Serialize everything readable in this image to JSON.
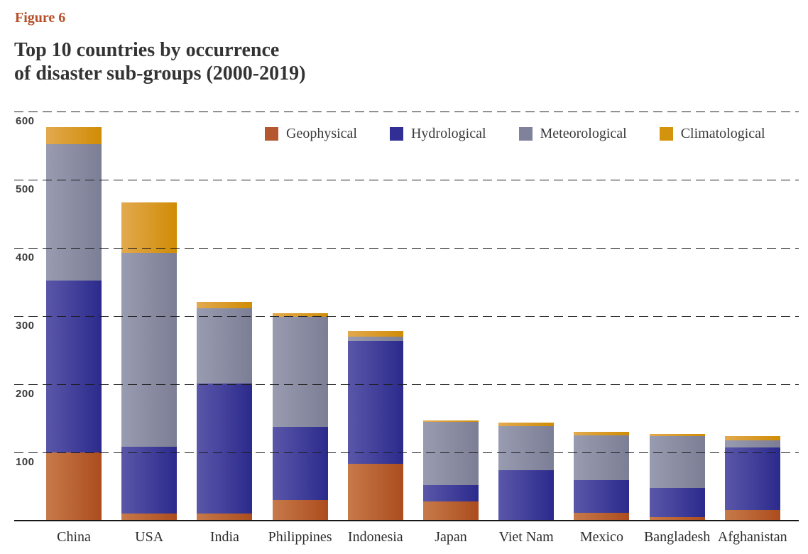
{
  "figure_label": "Figure 6",
  "title": "Top 10 countries by occurrence\nof disaster sub-groups (2000-2019)",
  "colors": {
    "figure_label": "#b5502a",
    "title_text": "#333333",
    "axis_text": "#3b3b3b",
    "gridline": "#1c1c1c",
    "background": "#ffffff"
  },
  "chart_data": {
    "type": "bar",
    "stacked": true,
    "title": "Top 10 countries by occurrence of disaster sub-groups (2000-2019)",
    "xlabel": "",
    "ylabel": "",
    "ylim": [
      0,
      600
    ],
    "yticks": [
      100,
      200,
      300,
      400,
      500,
      600
    ],
    "grid": "horizontal-dashed",
    "legend_position": "top",
    "categories": [
      "China",
      "USA",
      "India",
      "Philippines",
      "Indonesia",
      "Japan",
      "Viet Nam",
      "Mexico",
      "Bangladesh",
      "Afghanistan"
    ],
    "series": [
      {
        "name": "Geophysical",
        "legend_color": "#b4572f",
        "gradient_left": "#c87a4a",
        "gradient_right": "#ab4c1e",
        "values": [
          100,
          10,
          10,
          30,
          83,
          28,
          0,
          11,
          5,
          16
        ]
      },
      {
        "name": "Hydrological",
        "legend_color": "#312e96",
        "gradient_left": "#5a57a9",
        "gradient_right": "#2b2a8c",
        "values": [
          252,
          98,
          191,
          108,
          181,
          24,
          74,
          48,
          43,
          91
        ]
      },
      {
        "name": "Meteorological",
        "legend_color": "#80829b",
        "gradient_left": "#999bb1",
        "gradient_right": "#7c7e95",
        "values": [
          200,
          285,
          110,
          161,
          6,
          93,
          65,
          66,
          76,
          11
        ]
      },
      {
        "name": "Climatological",
        "legend_color": "#d4930d",
        "gradient_left": "#e2a94f",
        "gradient_right": "#d08c04",
        "values": [
          25,
          74,
          10,
          5,
          8,
          2,
          5,
          5,
          3,
          6
        ]
      }
    ],
    "totals": [
      577,
      467,
      321,
      304,
      278,
      147,
      144,
      130,
      127,
      124
    ]
  }
}
